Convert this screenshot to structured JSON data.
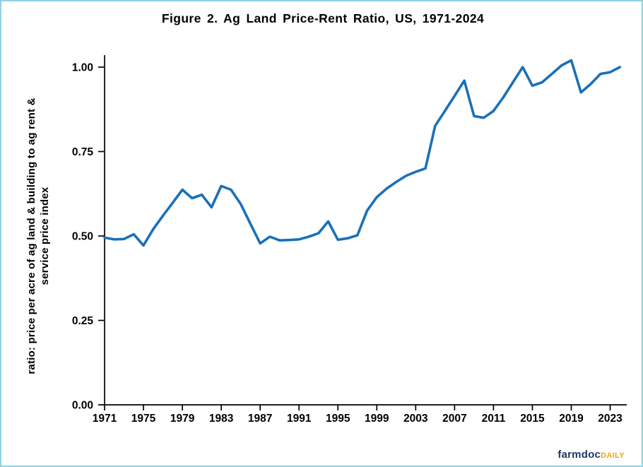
{
  "title": "Figure 2.  Ag Land Price-Rent Ratio, US, 1971-2024",
  "y_axis_label_line1": "ratio:  price per acre of ag land & building to ag rent &",
  "y_axis_label_line2": "service price index",
  "logo": {
    "brand": "farmdoc",
    "suffix": "DAILY",
    "brand_color": "#1f3864",
    "suffix_color": "#f0a400"
  },
  "chart_data": {
    "type": "line",
    "title": "Figure 2.  Ag Land Price-Rent Ratio, US, 1971-2024",
    "xlabel": "",
    "ylabel": "ratio: price per acre of ag land & building to ag rent & service price index",
    "legend_position": "none",
    "grid": false,
    "line_color": "#1b70b8",
    "axis_color": "#000000",
    "xlim": [
      1971,
      2024.8
    ],
    "ylim": [
      0,
      1.035
    ],
    "x_ticks": [
      1971,
      1975,
      1979,
      1983,
      1987,
      1991,
      1995,
      1999,
      2003,
      2007,
      2011,
      2015,
      2019,
      2023
    ],
    "y_tick_values": [
      0,
      0.25,
      0.5,
      0.75,
      1.0
    ],
    "y_tick_labels": [
      "0.00",
      "0.25",
      "0.50",
      "0.75",
      "1.00"
    ],
    "x": [
      1971,
      1972,
      1973,
      1974,
      1975,
      1976,
      1977,
      1978,
      1979,
      1980,
      1981,
      1982,
      1983,
      1984,
      1985,
      1986,
      1987,
      1988,
      1989,
      1990,
      1991,
      1992,
      1993,
      1994,
      1995,
      1996,
      1997,
      1998,
      1999,
      2000,
      2001,
      2002,
      2003,
      2004,
      2005,
      2006,
      2007,
      2008,
      2009,
      2010,
      2011,
      2012,
      2013,
      2014,
      2015,
      2016,
      2017,
      2018,
      2019,
      2020,
      2021,
      2022,
      2023,
      2024
    ],
    "values": [
      0.495,
      0.49,
      0.491,
      0.505,
      0.472,
      0.52,
      0.56,
      0.598,
      0.637,
      0.612,
      0.622,
      0.585,
      0.648,
      0.637,
      0.595,
      0.536,
      0.478,
      0.498,
      0.487,
      0.488,
      0.49,
      0.498,
      0.508,
      0.543,
      0.489,
      0.493,
      0.502,
      0.575,
      0.615,
      0.64,
      0.66,
      0.678,
      0.69,
      0.7,
      0.826,
      0.87,
      0.915,
      0.96,
      0.855,
      0.85,
      0.87,
      0.91,
      0.955,
      1.0,
      0.945,
      0.955,
      0.98,
      1.005,
      1.02,
      0.925,
      0.95,
      0.98,
      0.985,
      1.0
    ]
  }
}
